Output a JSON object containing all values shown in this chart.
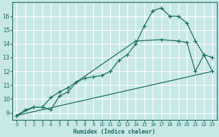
{
  "background_color": "#c8e8e8",
  "grid_color": "#a0c8c8",
  "line_color": "#1a6a5a",
  "xlabel": "Humidex (Indice chaleur)",
  "xlim": [
    -0.5,
    23.5
  ],
  "ylim": [
    8.5,
    17.0
  ],
  "xticks": [
    0,
    1,
    2,
    3,
    4,
    5,
    6,
    7,
    8,
    9,
    10,
    11,
    12,
    13,
    14,
    15,
    16,
    17,
    18,
    19,
    20,
    21,
    22,
    23
  ],
  "yticks": [
    9,
    10,
    11,
    12,
    13,
    14,
    15,
    16
  ],
  "series1_x": [
    0,
    1,
    2,
    3,
    4,
    5,
    6,
    7,
    8,
    9,
    10,
    11,
    12,
    13,
    14,
    15,
    16,
    17,
    18,
    19,
    20,
    21,
    22,
    23
  ],
  "series1_y": [
    8.8,
    9.2,
    9.4,
    9.4,
    9.2,
    10.2,
    10.5,
    11.2,
    11.5,
    11.6,
    11.7,
    12.0,
    12.8,
    13.2,
    14.0,
    15.3,
    16.4,
    16.6,
    16.0,
    16.0,
    15.5,
    14.2,
    13.2,
    13.0
  ],
  "series2_x": [
    0,
    2,
    3,
    4,
    5,
    6,
    14,
    17,
    19,
    20,
    21,
    22,
    23
  ],
  "series2_y": [
    8.8,
    9.4,
    9.4,
    10.1,
    10.5,
    10.8,
    14.2,
    14.3,
    14.2,
    14.1,
    12.0,
    13.2,
    12.0
  ],
  "series3_x": [
    0,
    23
  ],
  "series3_y": [
    8.8,
    12.0
  ]
}
